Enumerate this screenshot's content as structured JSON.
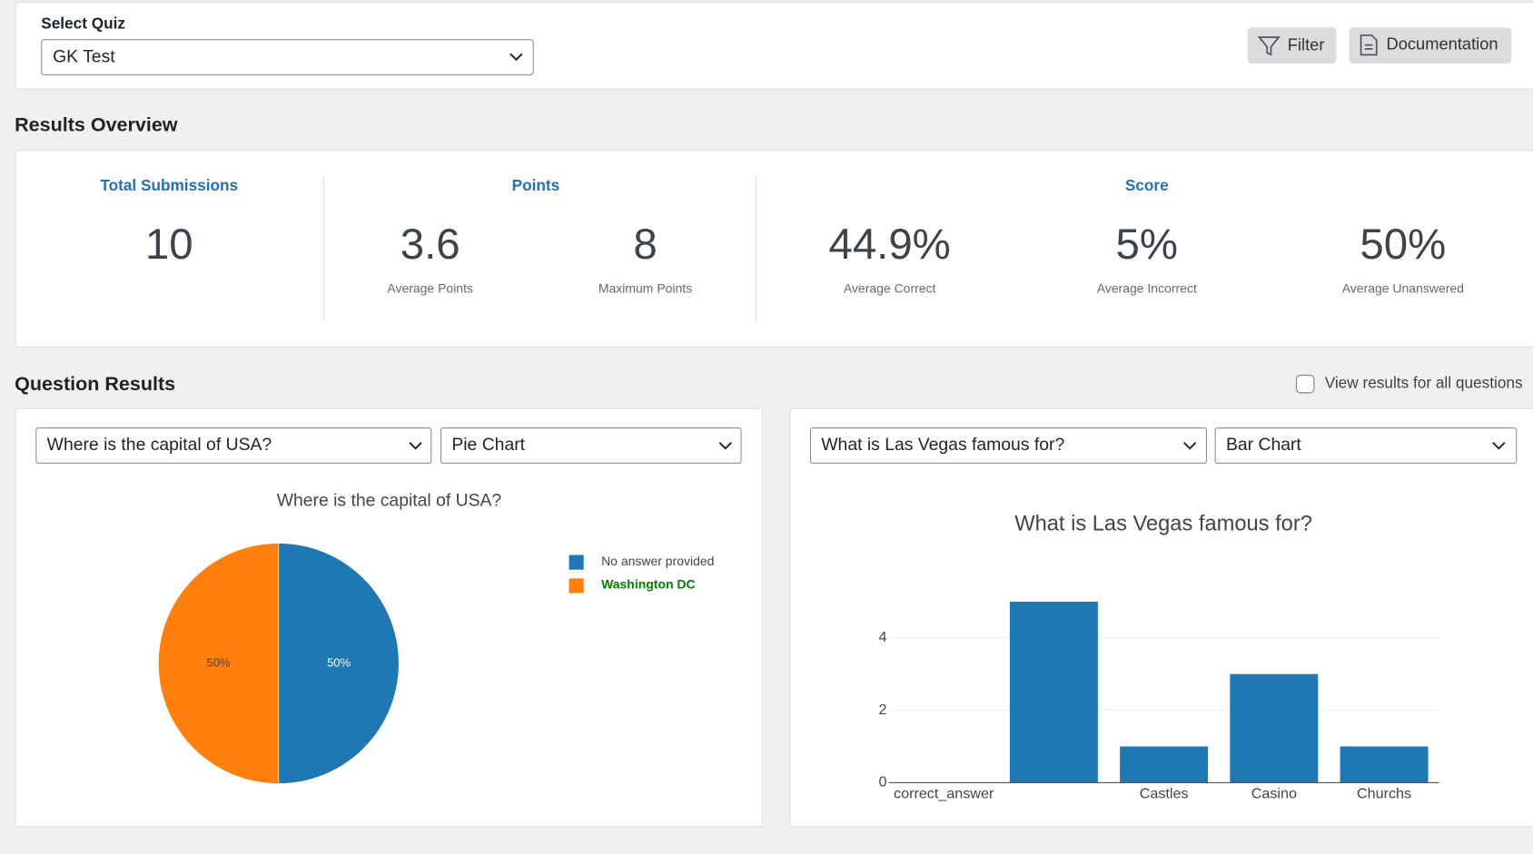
{
  "quiz_selector": {
    "label": "Select Quiz",
    "value": "GK Test"
  },
  "toolbar": {
    "buttons": [
      "Filter",
      "Documentation"
    ]
  },
  "results_overview": {
    "title": "Results Overview",
    "groups": [
      {
        "title": "Total Submissions",
        "stats": [
          {
            "value": "10"
          }
        ]
      },
      {
        "title": "Points",
        "stats": [
          {
            "value": "3.6",
            "label": "Average Points"
          },
          {
            "value": "8",
            "label": "Maximum Points"
          }
        ]
      },
      {
        "title": "Score",
        "stats": [
          {
            "value": "44.9%",
            "label": "Average Correct"
          },
          {
            "value": "5%",
            "label": "Average Incorrect"
          },
          {
            "value": "50%",
            "label": "Average Unanswered"
          }
        ]
      }
    ]
  },
  "question_results": {
    "title": "Question Results",
    "toggle_label": "View results for all questions",
    "panels": [
      {
        "question_select": "Where is the capital of USA?",
        "chart_type_select": "Pie Chart"
      },
      {
        "question_select": "What is Las Vegas famous for?",
        "chart_type_select": "Bar Chart"
      }
    ]
  },
  "chart_data": [
    {
      "type": "pie",
      "title": "Where is the capital of USA?",
      "categories": [
        "No answer provided",
        "Washington DC"
      ],
      "values": [
        50,
        50
      ],
      "value_labels": [
        "50%",
        "50%"
      ],
      "colors": [
        "#1f77b4",
        "#ff7f0e"
      ],
      "legend_text_colors": [
        "#444444",
        "#008000"
      ]
    },
    {
      "type": "bar",
      "title": "What is Las Vegas famous for?",
      "categories": [
        "correct_answer",
        null,
        "Castles",
        "Casino",
        "Churchs"
      ],
      "values": [
        0,
        5,
        1,
        3,
        1
      ],
      "color": "#1f77b4",
      "ylim": [
        0,
        5.4
      ],
      "yticks": [
        0,
        2,
        4
      ],
      "grid": true
    }
  ]
}
